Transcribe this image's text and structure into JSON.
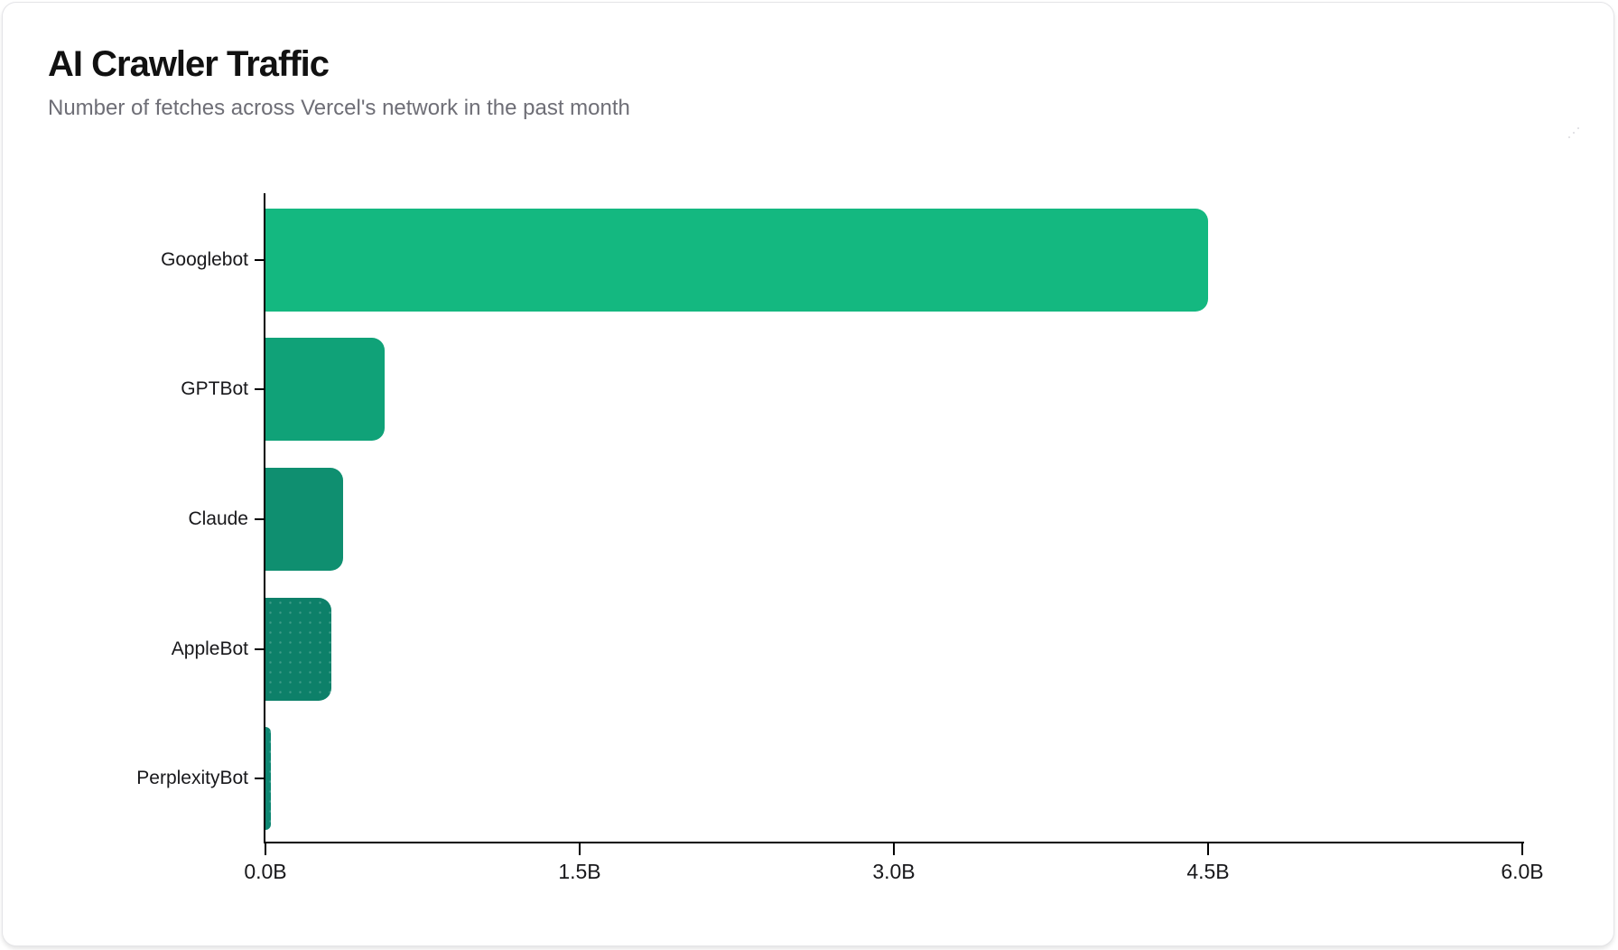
{
  "page": {
    "window": "chart-card"
  },
  "chart_data": {
    "type": "bar",
    "orientation": "horizontal",
    "title": "AI Crawler Traffic",
    "subtitle": "Number of fetches across Vercel's network in the past month",
    "categories": [
      "Googlebot",
      "GPTBot",
      "Claude",
      "AppleBot",
      "PerplexityBot"
    ],
    "values_billions": [
      4.5,
      0.569,
      0.37,
      0.314,
      0.0247
    ],
    "unit": "fetches (billions)",
    "bar_colors": [
      "#14b880",
      "#10a278",
      "#0f8f70",
      "#0d8069",
      "#0e8672"
    ],
    "bar_textured": [
      false,
      false,
      false,
      true,
      true
    ],
    "x_ticks": [
      "0.0B",
      "1.5B",
      "3.0B",
      "4.5B",
      "6.0B"
    ],
    "x_tick_values": [
      0,
      1.5,
      3.0,
      4.5,
      6.0
    ],
    "xlim": [
      0,
      6
    ],
    "xlabel": "",
    "ylabel": "",
    "grid": "off",
    "legend": "none",
    "axis_color": "#000000",
    "label_color": "#18181b",
    "subtitle_color": "#6e6e76"
  }
}
